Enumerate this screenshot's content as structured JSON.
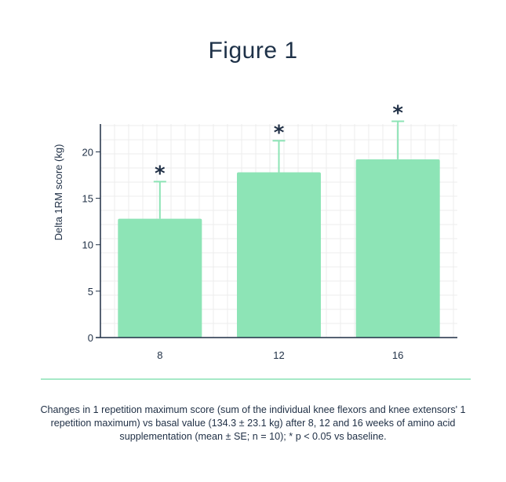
{
  "title": "Figure 1",
  "colors": {
    "bar": "#8de4b6",
    "error": "#8de4b6",
    "divider": "#a7e9c7",
    "grid": "#ececec",
    "axis": "#1f2f45",
    "text": "#1f2f45"
  },
  "chart_data": {
    "type": "bar",
    "categories": [
      "8",
      "12",
      "16"
    ],
    "values": [
      12.8,
      17.8,
      19.2
    ],
    "errors": [
      4.0,
      3.4,
      4.1
    ],
    "significance": [
      "*",
      "*",
      "*"
    ],
    "ylabel": "Delta 1RM score (kg)",
    "xlabel": "",
    "ylim": [
      0,
      23
    ],
    "yticks": [
      0,
      5,
      10,
      15,
      20
    ],
    "grid": true
  },
  "caption": "Changes in 1 repetition maximum score (sum of the individual knee flexors and knee extensors' 1 repetition maximum) vs basal value (134.3 ± 23.1 kg) after 8, 12 and 16 weeks of amino acid supplementation (mean ± SE; n = 10); * p < 0.05 vs baseline."
}
